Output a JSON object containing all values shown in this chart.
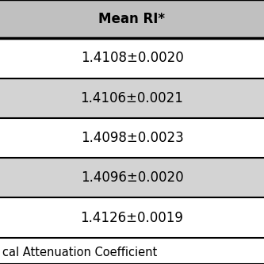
{
  "header": "Mean RI*",
  "rows": [
    "1.4108±0.0020",
    "1.4106±0.0021",
    "1.4098±0.0023",
    "1.4096±0.0020",
    "1.4126±0.0019"
  ],
  "footer": "cal Attenuation Coefficient",
  "header_bg": "#c0c0c0",
  "row_bg_odd": "#ffffff",
  "row_bg_even": "#d3d3d3",
  "border_color": "#000000",
  "text_color": "#000000",
  "header_fontsize": 12,
  "row_fontsize": 12,
  "footer_fontsize": 10.5
}
